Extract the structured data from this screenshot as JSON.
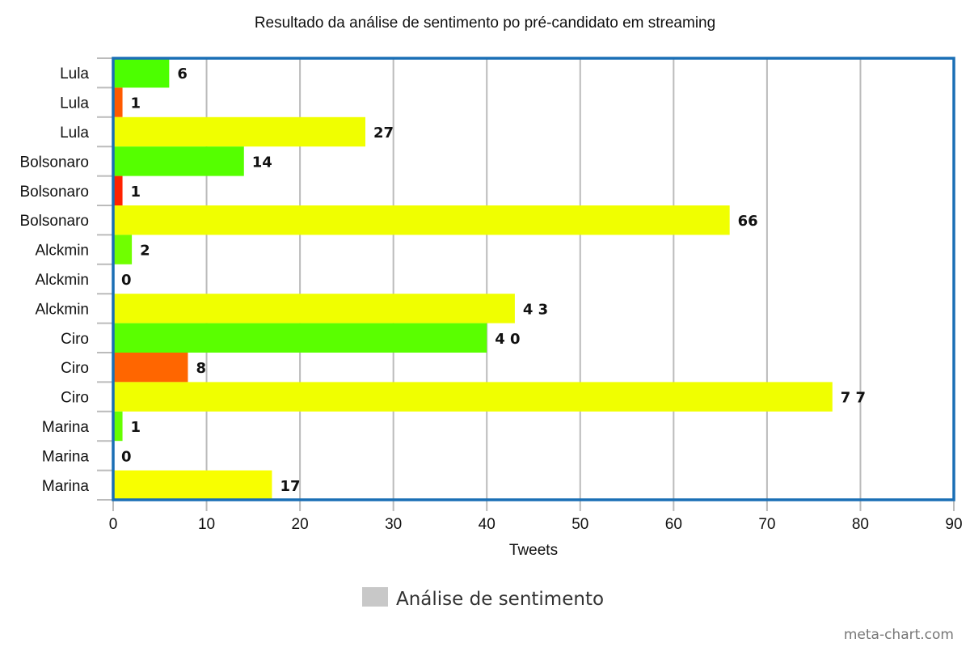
{
  "chart_data": {
    "type": "bar",
    "orientation": "horizontal",
    "title": "Resultado da análise de sentimento po pré-candidato em streaming",
    "xlabel": "Tweets",
    "ylabel": "",
    "xlim": [
      0,
      90
    ],
    "x_ticks": [
      "0",
      "10",
      "20",
      "30",
      "40",
      "50",
      "60",
      "70",
      "80",
      "90"
    ],
    "grid": true,
    "legend_position": "bottom",
    "categories": [
      "Lula",
      "Lula",
      "Lula",
      "Bolsonaro",
      "Bolsonaro",
      "Bolsonaro",
      "Alckmin",
      "Alckmin",
      "Alckmin",
      "Ciro",
      "Ciro",
      "Ciro",
      "Marina",
      "Marina",
      "Marina"
    ],
    "series": [
      {
        "name": "Análise de sentimento",
        "values": [
          6,
          1,
          27,
          14,
          1,
          66,
          2,
          0,
          43,
          40,
          8,
          77,
          1,
          0,
          17
        ],
        "value_labels": [
          "6",
          "1",
          "27",
          "14",
          "1",
          "66",
          "2",
          "0",
          "4 3",
          "4 0",
          "8",
          "7 7",
          "1",
          "0",
          "17"
        ],
        "colors": [
          "#4cff00",
          "#ff5a00",
          "#f0ff00",
          "#55ff00",
          "#ff2200",
          "#f0ff00",
          "#70ff00",
          "#ff0000",
          "#f0ff00",
          "#5aff00",
          "#ff6600",
          "#f0ff00",
          "#66ff00",
          "#ff0000",
          "#f8ff00"
        ]
      }
    ],
    "legend_swatch_color": "#c8c8c8",
    "frame_color": "#1a6fb5",
    "grid_color": "#bbbbbb"
  },
  "legend": {
    "label": "Análise de sentimento"
  },
  "credit": "meta-chart.com"
}
